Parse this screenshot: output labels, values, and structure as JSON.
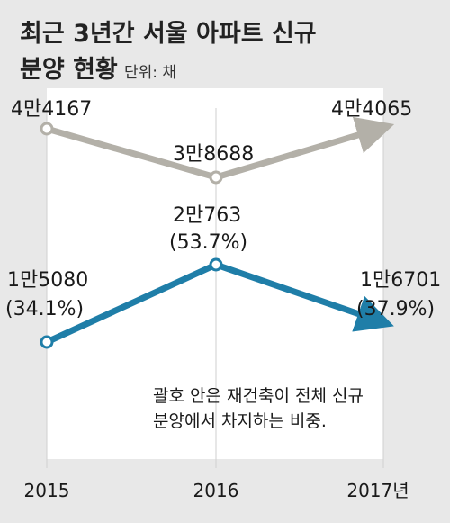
{
  "title": {
    "line1": "최근 3년간 서울 아파트 신규",
    "line2": "분양 현황",
    "unit": "단위: 채"
  },
  "note": {
    "line1": "괄호 안은 재건축이 전체 신규",
    "line2": "분양에서 차지하는 비중."
  },
  "colors": {
    "background": "#e8e8e8",
    "plot_area": "#ffffff",
    "total_series": "#b3b0a8",
    "rebuild_series": "#1f7ea8"
  },
  "chart_data": {
    "type": "line",
    "categories": [
      "2015",
      "2016",
      "2017년"
    ],
    "ylim": [
      0,
      46000
    ],
    "grid": false,
    "legend": "none",
    "series": [
      {
        "values": [
          44167,
          38688,
          44065
        ],
        "labels": [
          "4만4167",
          "3만8688",
          "4만4065"
        ]
      },
      {
        "values": [
          15080,
          20763,
          16701
        ],
        "labels": [
          "1만5080",
          "2만763",
          "1만6701"
        ],
        "shares": [
          "(34.1%)",
          "(53.7%)",
          "(37.9%)"
        ]
      }
    ]
  }
}
